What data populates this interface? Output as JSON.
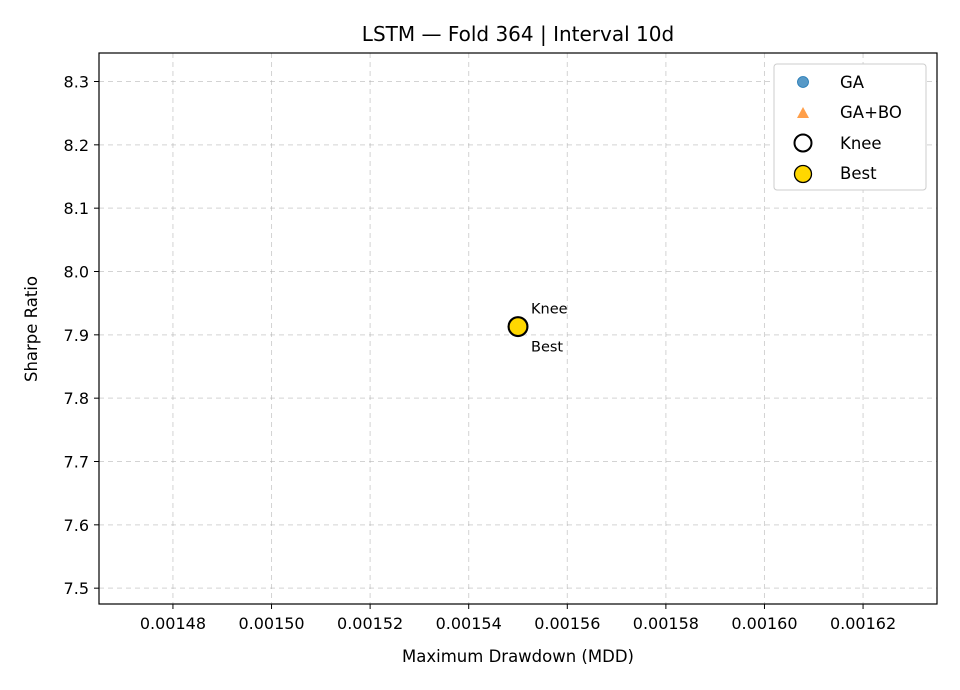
{
  "chart_data": {
    "type": "scatter",
    "title": "LSTM — Fold 364 | Interval 10d",
    "xlabel": "Maximum Drawdown (MDD)",
    "ylabel": "Sharpe Ratio",
    "xlim": [
      0.001465,
      0.001635
    ],
    "ylim": [
      7.475,
      8.345
    ],
    "xticks": [
      0.00148,
      0.0015,
      0.00152,
      0.00154,
      0.00156,
      0.00158,
      0.0016,
      0.00162
    ],
    "xtick_labels": [
      "0.00148",
      "0.00150",
      "0.00152",
      "0.00154",
      "0.00156",
      "0.00158",
      "0.00160",
      "0.00162"
    ],
    "yticks": [
      7.5,
      7.6,
      7.7,
      7.8,
      7.9,
      8.0,
      8.1,
      8.2,
      8.3
    ],
    "ytick_labels": [
      "7.5",
      "7.6",
      "7.7",
      "7.8",
      "7.9",
      "8.0",
      "8.1",
      "8.2",
      "8.3"
    ],
    "grid": true,
    "legend_position": "top-right",
    "series": [
      {
        "name": "GA",
        "marker": "circle",
        "color": "#1f77b4",
        "points": []
      },
      {
        "name": "GA+BO",
        "marker": "triangle",
        "color": "#ff7f0e",
        "points": []
      },
      {
        "name": "Knee",
        "marker": "hollow-circle",
        "color": "#000000",
        "points": [
          {
            "x": 0.00155,
            "y": 7.913
          }
        ]
      },
      {
        "name": "Best",
        "marker": "gold-circle",
        "color": "#ffd700",
        "points": [
          {
            "x": 0.00155,
            "y": 7.913
          }
        ]
      }
    ],
    "annotations": [
      {
        "text": "Knee",
        "x": 0.00155,
        "y": 7.913,
        "placement": "above-right"
      },
      {
        "text": "Best",
        "x": 0.00155,
        "y": 7.913,
        "placement": "below-right"
      }
    ]
  }
}
